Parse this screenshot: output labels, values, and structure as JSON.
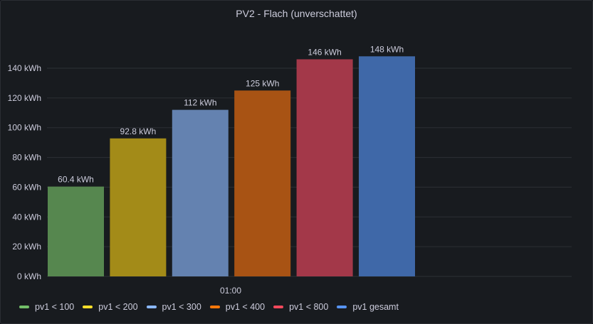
{
  "panel": {
    "title": "PV2 - Flach (unverschattet)"
  },
  "chart_data": {
    "type": "bar",
    "title": "PV2 - Flach (unverschattet)",
    "categories": [
      "01:00"
    ],
    "unit": "kWh",
    "ylim": [
      0,
      150
    ],
    "yticks": [
      0,
      20,
      40,
      60,
      80,
      100,
      120,
      140
    ],
    "ytick_labels": [
      "0 kWh",
      "20 kWh",
      "40 kWh",
      "60 kWh",
      "80 kWh",
      "100 kWh",
      "120 kWh",
      "140 kWh"
    ],
    "grid": true,
    "legend_position": "bottom-left",
    "series": [
      {
        "name": "pv1 < 100",
        "values": [
          60.4
        ],
        "label": "60.4 kWh",
        "color": "#73bf69",
        "bar_color": "#56874f"
      },
      {
        "name": "pv1 < 200",
        "values": [
          92.8
        ],
        "label": "92.8 kWh",
        "color": "#fade2a",
        "bar_color": "#a38b18"
      },
      {
        "name": "pv1 < 300",
        "values": [
          112
        ],
        "label": "112 kWh",
        "color": "#8ab8ff",
        "bar_color": "#6482b0"
      },
      {
        "name": "pv1 < 400",
        "values": [
          125
        ],
        "label": "125 kWh",
        "color": "#ff780a",
        "bar_color": "#a85314"
      },
      {
        "name": "pv1 < 800",
        "values": [
          146
        ],
        "label": "146 kWh",
        "color": "#f2495c",
        "bar_color": "#a33849"
      },
      {
        "name": "pv1 gesamt",
        "values": [
          148
        ],
        "label": "148 kWh",
        "color": "#5794f2",
        "bar_color": "#3f68a8"
      }
    ]
  }
}
